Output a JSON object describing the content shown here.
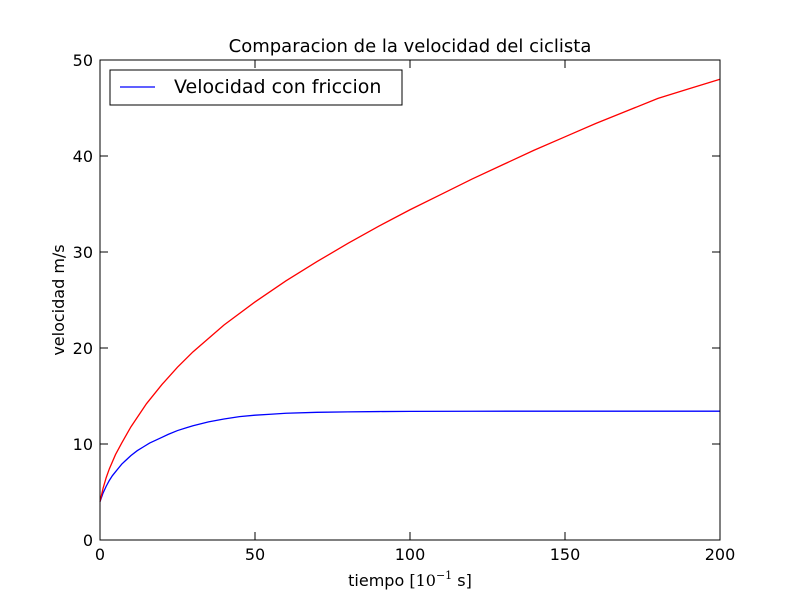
{
  "chart_data": {
    "type": "line",
    "title": "Comparacion de la velocidad del ciclista",
    "xlabel_prefix": "tiempo",
    "xlabel_unit_base": "10",
    "xlabel_unit_exp": "−1",
    "xlabel_unit_suffix": "s",
    "ylabel": "velocidad m/s",
    "xlim": [
      0,
      200
    ],
    "ylim": [
      0,
      50
    ],
    "xticks": [
      0,
      50,
      100,
      150,
      200
    ],
    "yticks": [
      0,
      10,
      20,
      30,
      40,
      50
    ],
    "xtick_labels": [
      "0",
      "50",
      "100",
      "150",
      "200"
    ],
    "ytick_labels": [
      "0",
      "10",
      "20",
      "30",
      "40",
      "50"
    ],
    "grid": false,
    "legend": {
      "position": "top-left",
      "entries": [
        {
          "label": "Velocidad con friccion",
          "color": "#0000ff"
        }
      ]
    },
    "series": [
      {
        "color": "#0000ff",
        "x": [
          0,
          1,
          2,
          3,
          4,
          5,
          6,
          7,
          8,
          9,
          10,
          12,
          14,
          16,
          18,
          20,
          22,
          25,
          28,
          30,
          35,
          40,
          45,
          50,
          55,
          60,
          70,
          80,
          90,
          100,
          120,
          140,
          160,
          180,
          200
        ],
        "y": [
          4.0,
          4.9,
          5.6,
          6.2,
          6.7,
          7.1,
          7.5,
          7.9,
          8.2,
          8.5,
          8.8,
          9.3,
          9.7,
          10.1,
          10.4,
          10.7,
          11.0,
          11.4,
          11.7,
          11.9,
          12.3,
          12.6,
          12.85,
          13.0,
          13.1,
          13.2,
          13.3,
          13.35,
          13.38,
          13.4,
          13.41,
          13.42,
          13.42,
          13.42,
          13.42
        ]
      },
      {
        "color": "#ff0000",
        "x": [
          0,
          1,
          2,
          3,
          5,
          7,
          10,
          15,
          20,
          25,
          30,
          40,
          50,
          60,
          70,
          80,
          90,
          100,
          110,
          120,
          130,
          140,
          150,
          160,
          170,
          180,
          190,
          200
        ],
        "y": [
          4.0,
          5.4,
          6.5,
          7.4,
          8.9,
          10.1,
          11.8,
          14.2,
          16.2,
          18.0,
          19.6,
          22.4,
          24.8,
          27.0,
          29.0,
          30.9,
          32.7,
          34.4,
          36.0,
          37.6,
          39.1,
          40.6,
          42.0,
          43.4,
          44.7,
          46.0,
          47.0,
          48.0
        ]
      }
    ]
  }
}
